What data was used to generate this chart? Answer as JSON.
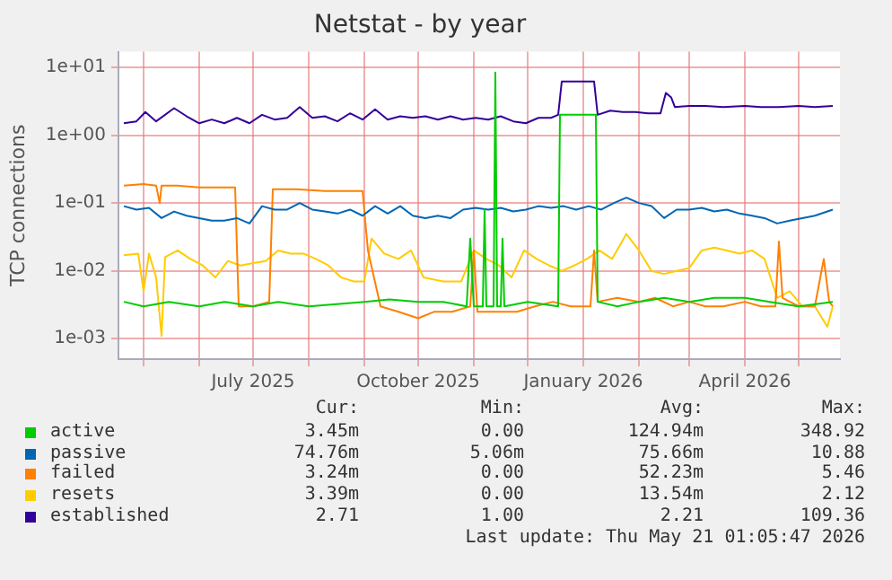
{
  "chart_data": {
    "type": "line",
    "title": "Netstat - by year",
    "ylabel": "TCP connections",
    "log": "y",
    "grid": true,
    "legend": "bottom",
    "marker": "none",
    "line_style": "solid",
    "xlim": [
      "2025-04-17",
      "2026-05-24"
    ],
    "xticks": [
      {
        "value": "2025-05-01",
        "label": null
      },
      {
        "value": "2025-06-01",
        "label": null
      },
      {
        "value": "2025-07-01",
        "label": "July 2025"
      },
      {
        "value": "2025-08-01",
        "label": null
      },
      {
        "value": "2025-09-01",
        "label": null
      },
      {
        "value": "2025-10-01",
        "label": "October 2025"
      },
      {
        "value": "2025-11-01",
        "label": null
      },
      {
        "value": "2025-12-01",
        "label": null
      },
      {
        "value": "2026-01-01",
        "label": "January 2026"
      },
      {
        "value": "2026-02-01",
        "label": null
      },
      {
        "value": "2026-03-01",
        "label": null
      },
      {
        "value": "2026-04-01",
        "label": "April 2026"
      },
      {
        "value": "2026-05-01",
        "label": null
      }
    ],
    "ylim": [
      0.0005,
      17
    ],
    "yticks": [
      {
        "value": 0.001,
        "label": "1e-03"
      },
      {
        "value": 0.01,
        "label": "1e-02"
      },
      {
        "value": 0.1,
        "label": "1e-01"
      },
      {
        "value": 1,
        "label": "1e+00"
      },
      {
        "value": 10,
        "label": "1e+01"
      }
    ],
    "series": [
      {
        "name": "active",
        "color": "#00cc00",
        "x": [
          "2025-04-20",
          "2025-05-01",
          "2025-05-15",
          "2025-06-01",
          "2025-06-15",
          "2025-07-01",
          "2025-07-15",
          "2025-08-01",
          "2025-08-15",
          "2025-09-01",
          "2025-09-15",
          "2025-10-01",
          "2025-10-15",
          "2025-10-28",
          "2025-10-30",
          "2025-11-01",
          "2025-11-06",
          "2025-11-07",
          "2025-11-08",
          "2025-11-12",
          "2025-11-13",
          "2025-11-14",
          "2025-11-16",
          "2025-11-17",
          "2025-11-18",
          "2025-12-01",
          "2025-12-18",
          "2025-12-19",
          "2026-01-08",
          "2026-01-09",
          "2026-01-20",
          "2026-02-01",
          "2026-02-15",
          "2026-03-01",
          "2026-03-15",
          "2026-04-01",
          "2026-04-15",
          "2026-05-01",
          "2026-05-20"
        ],
        "values": [
          0.0035,
          0.003,
          0.0035,
          0.003,
          0.0035,
          0.003,
          0.0035,
          0.003,
          0.0032,
          0.0035,
          0.0038,
          0.0035,
          0.0035,
          0.003,
          0.03,
          0.003,
          0.003,
          0.08,
          0.003,
          0.003,
          8.4,
          0.003,
          0.003,
          0.03,
          0.003,
          0.0035,
          0.003,
          2.0,
          2.0,
          0.0035,
          0.003,
          0.0035,
          0.004,
          0.0035,
          0.004,
          0.004,
          0.0035,
          0.003,
          0.0035
        ]
      },
      {
        "name": "passive",
        "color": "#0066b3",
        "x": [
          "2025-04-20",
          "2025-04-27",
          "2025-05-04",
          "2025-05-11",
          "2025-05-18",
          "2025-05-25",
          "2025-06-01",
          "2025-06-08",
          "2025-06-15",
          "2025-06-22",
          "2025-06-29",
          "2025-07-06",
          "2025-07-13",
          "2025-07-20",
          "2025-07-27",
          "2025-08-03",
          "2025-08-10",
          "2025-08-17",
          "2025-08-24",
          "2025-08-31",
          "2025-09-07",
          "2025-09-14",
          "2025-09-21",
          "2025-09-28",
          "2025-10-05",
          "2025-10-12",
          "2025-10-19",
          "2025-10-26",
          "2025-11-02",
          "2025-11-09",
          "2025-11-16",
          "2025-11-23",
          "2025-11-30",
          "2025-12-07",
          "2025-12-14",
          "2025-12-21",
          "2025-12-28",
          "2026-01-04",
          "2026-01-11",
          "2026-01-18",
          "2026-01-25",
          "2026-02-01",
          "2026-02-08",
          "2026-02-15",
          "2026-02-22",
          "2026-03-01",
          "2026-03-08",
          "2026-03-15",
          "2026-03-22",
          "2026-03-29",
          "2026-04-05",
          "2026-04-12",
          "2026-04-19",
          "2026-04-26",
          "2026-05-03",
          "2026-05-10",
          "2026-05-20"
        ],
        "values": [
          0.09,
          0.08,
          0.085,
          0.06,
          0.075,
          0.065,
          0.06,
          0.055,
          0.055,
          0.06,
          0.05,
          0.09,
          0.08,
          0.08,
          0.1,
          0.08,
          0.075,
          0.07,
          0.08,
          0.065,
          0.09,
          0.07,
          0.09,
          0.065,
          0.06,
          0.065,
          0.06,
          0.08,
          0.085,
          0.08,
          0.085,
          0.075,
          0.08,
          0.09,
          0.085,
          0.09,
          0.08,
          0.09,
          0.08,
          0.1,
          0.12,
          0.1,
          0.09,
          0.06,
          0.08,
          0.08,
          0.085,
          0.075,
          0.08,
          0.07,
          0.065,
          0.06,
          0.05,
          0.055,
          0.06,
          0.065,
          0.08
        ]
      },
      {
        "name": "failed",
        "color": "#ff8000",
        "x": [
          "2025-04-20",
          "2025-05-01",
          "2025-05-08",
          "2025-05-10",
          "2025-05-11",
          "2025-05-20",
          "2025-06-01",
          "2025-06-10",
          "2025-06-21",
          "2025-06-23",
          "2025-07-01",
          "2025-07-10",
          "2025-07-12",
          "2025-07-25",
          "2025-08-10",
          "2025-08-25",
          "2025-08-31",
          "2025-09-03",
          "2025-09-10",
          "2025-09-20",
          "2025-10-01",
          "2025-10-10",
          "2025-10-20",
          "2025-10-30",
          "2025-11-01",
          "2025-11-03",
          "2025-11-15",
          "2025-11-25",
          "2025-12-05",
          "2025-12-15",
          "2025-12-25",
          "2026-01-05",
          "2026-01-07",
          "2026-01-09",
          "2026-01-20",
          "2026-02-01",
          "2026-02-10",
          "2026-02-20",
          "2026-03-01",
          "2026-03-10",
          "2026-03-20",
          "2026-04-01",
          "2026-04-10",
          "2026-04-18",
          "2026-04-20",
          "2026-04-22",
          "2026-05-01",
          "2026-05-10",
          "2026-05-15",
          "2026-05-18",
          "2026-05-20"
        ],
        "values": [
          0.18,
          0.19,
          0.18,
          0.1,
          0.18,
          0.18,
          0.17,
          0.17,
          0.17,
          0.003,
          0.003,
          0.0035,
          0.16,
          0.16,
          0.15,
          0.15,
          0.15,
          0.02,
          0.003,
          0.0025,
          0.002,
          0.0025,
          0.0025,
          0.003,
          0.02,
          0.0025,
          0.0025,
          0.0025,
          0.003,
          0.0035,
          0.003,
          0.003,
          0.02,
          0.0035,
          0.004,
          0.0035,
          0.004,
          0.003,
          0.0035,
          0.003,
          0.003,
          0.0035,
          0.003,
          0.003,
          0.027,
          0.004,
          0.003,
          0.003,
          0.015,
          0.0035,
          0.003
        ]
      },
      {
        "name": "resets",
        "color": "#ffcc00",
        "x": [
          "2025-04-20",
          "2025-04-28",
          "2025-05-01",
          "2025-05-04",
          "2025-05-08",
          "2025-05-11",
          "2025-05-13",
          "2025-05-20",
          "2025-05-27",
          "2025-06-03",
          "2025-06-10",
          "2025-06-17",
          "2025-06-24",
          "2025-07-01",
          "2025-07-08",
          "2025-07-15",
          "2025-07-22",
          "2025-07-29",
          "2025-08-05",
          "2025-08-12",
          "2025-08-19",
          "2025-08-26",
          "2025-09-01",
          "2025-09-05",
          "2025-09-12",
          "2025-09-20",
          "2025-09-27",
          "2025-10-04",
          "2025-10-15",
          "2025-10-25",
          "2025-11-01",
          "2025-11-08",
          "2025-11-15",
          "2025-11-22",
          "2025-11-29",
          "2025-12-06",
          "2025-12-13",
          "2025-12-20",
          "2025-12-27",
          "2026-01-03",
          "2026-01-10",
          "2026-01-17",
          "2026-01-25",
          "2026-02-01",
          "2026-02-08",
          "2026-02-15",
          "2026-02-22",
          "2026-03-01",
          "2026-03-08",
          "2026-03-15",
          "2026-03-22",
          "2026-03-29",
          "2026-04-05",
          "2026-04-12",
          "2026-04-19",
          "2026-04-26",
          "2026-05-03",
          "2026-05-10",
          "2026-05-17",
          "2026-05-20"
        ],
        "values": [
          0.017,
          0.018,
          0.005,
          0.018,
          0.008,
          0.0011,
          0.016,
          0.02,
          0.015,
          0.012,
          0.008,
          0.014,
          0.012,
          0.013,
          0.014,
          0.02,
          0.018,
          0.018,
          0.015,
          0.012,
          0.008,
          0.007,
          0.007,
          0.03,
          0.018,
          0.015,
          0.02,
          0.008,
          0.007,
          0.007,
          0.02,
          0.015,
          0.012,
          0.008,
          0.02,
          0.015,
          0.012,
          0.01,
          0.012,
          0.015,
          0.02,
          0.015,
          0.035,
          0.02,
          0.01,
          0.009,
          0.01,
          0.011,
          0.02,
          0.022,
          0.02,
          0.018,
          0.02,
          0.015,
          0.004,
          0.005,
          0.003,
          0.003,
          0.0015,
          0.003
        ]
      },
      {
        "name": "established",
        "color": "#330099",
        "x": [
          "2025-04-20",
          "2025-04-27",
          "2025-05-02",
          "2025-05-08",
          "2025-05-18",
          "2025-05-25",
          "2025-06-01",
          "2025-06-08",
          "2025-06-15",
          "2025-06-22",
          "2025-06-29",
          "2025-07-06",
          "2025-07-13",
          "2025-07-20",
          "2025-07-27",
          "2025-08-03",
          "2025-08-10",
          "2025-08-17",
          "2025-08-24",
          "2025-08-31",
          "2025-09-07",
          "2025-09-14",
          "2025-09-21",
          "2025-09-28",
          "2025-10-05",
          "2025-10-12",
          "2025-10-19",
          "2025-10-26",
          "2025-11-02",
          "2025-11-09",
          "2025-11-16",
          "2025-11-23",
          "2025-11-30",
          "2025-12-07",
          "2025-12-14",
          "2025-12-18",
          "2025-12-20",
          "2026-01-07",
          "2026-01-09",
          "2026-01-16",
          "2026-01-23",
          "2026-01-30",
          "2026-02-06",
          "2026-02-13",
          "2026-02-16",
          "2026-02-19",
          "2026-02-21",
          "2026-03-01",
          "2026-03-10",
          "2026-03-20",
          "2026-04-01",
          "2026-04-10",
          "2026-04-20",
          "2026-05-01",
          "2026-05-10",
          "2026-05-20"
        ],
        "values": [
          1.5,
          1.6,
          2.2,
          1.6,
          2.5,
          1.9,
          1.5,
          1.7,
          1.5,
          1.8,
          1.5,
          2.0,
          1.7,
          1.8,
          2.6,
          1.8,
          1.9,
          1.6,
          2.1,
          1.7,
          2.4,
          1.7,
          1.9,
          1.8,
          1.9,
          1.7,
          1.9,
          1.7,
          1.8,
          1.7,
          1.9,
          1.6,
          1.5,
          1.8,
          1.8,
          2.0,
          6.2,
          6.2,
          2.0,
          2.3,
          2.2,
          2.2,
          2.1,
          2.1,
          4.2,
          3.6,
          2.6,
          2.7,
          2.7,
          2.6,
          2.7,
          2.6,
          2.6,
          2.7,
          2.6,
          2.7
        ]
      }
    ],
    "annotations": [
      "Cur:",
      "Min:",
      "Avg:",
      "Max:",
      "3.45m",
      "0.00",
      "124.94m",
      "348.92",
      "74.76m",
      "5.06m",
      "75.66m",
      "10.88",
      "3.24m",
      "0.00",
      "52.23m",
      "5.46",
      "3.39m",
      "0.00",
      "13.54m",
      "2.12",
      "2.71",
      "1.00",
      "2.21",
      "109.36",
      "Last update: Thu May 21 01:05:47 2026"
    ]
  }
}
